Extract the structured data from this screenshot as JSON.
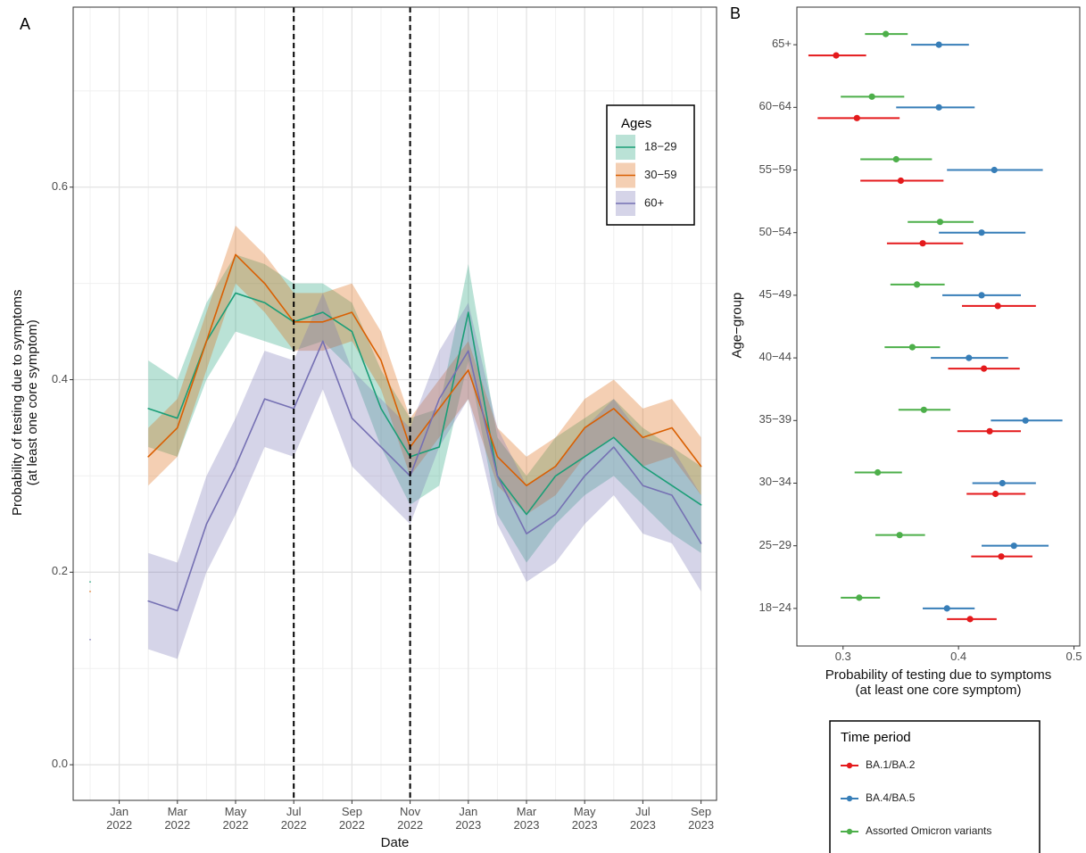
{
  "chart_data": [
    {
      "type": "line",
      "panel_label": "A",
      "x_label": "Date",
      "y_label": "Probability of testing due to symptoms\n(at least one core symptom)",
      "x": [
        "2021-12",
        "2022-01",
        "2022-02",
        "2022-03",
        "2022-04",
        "2022-05",
        "2022-06",
        "2022-07",
        "2022-08",
        "2022-09",
        "2022-10",
        "2022-11",
        "2022-12",
        "2023-01",
        "2023-02",
        "2023-03",
        "2023-04",
        "2023-05",
        "2023-06",
        "2023-07",
        "2023-08",
        "2023-09"
      ],
      "xticks": [
        {
          "value": "2022-01",
          "label": "Jan\n2022"
        },
        {
          "value": "2022-03",
          "label": "Mar\n2022"
        },
        {
          "value": "2022-05",
          "label": "May\n2022"
        },
        {
          "value": "2022-07",
          "label": "Jul\n2022"
        },
        {
          "value": "2022-09",
          "label": "Sep\n2022"
        },
        {
          "value": "2022-11",
          "label": "Nov\n2022"
        },
        {
          "value": "2023-01",
          "label": "Jan\n2023"
        },
        {
          "value": "2023-03",
          "label": "Mar\n2023"
        },
        {
          "value": "2023-05",
          "label": "May\n2023"
        },
        {
          "value": "2023-07",
          "label": "Jul\n2023"
        },
        {
          "value": "2023-09",
          "label": "Sep\n2023"
        }
      ],
      "ylim": [
        -0.037,
        0.787
      ],
      "yticks": [
        {
          "value": 0,
          "label": "0.0"
        },
        0.2,
        0.4,
        0.6
      ],
      "minor_yticks": [
        0.1,
        0.3,
        0.5,
        0.7
      ],
      "grid": true,
      "vlines": [
        "2022-07",
        "2022-11"
      ],
      "legend": {
        "title": "Ages",
        "position": "top-right"
      },
      "series": [
        {
          "name": "18−29",
          "color": "#1b9e77",
          "values": [
            0.19,
            null,
            0.37,
            0.36,
            0.44,
            0.49,
            0.48,
            0.46,
            0.47,
            0.45,
            0.37,
            0.32,
            0.33,
            0.47,
            0.3,
            0.26,
            0.3,
            0.32,
            0.34,
            0.31,
            0.29,
            0.27
          ],
          "lower": [
            0.14,
            null,
            0.33,
            0.32,
            0.4,
            0.45,
            0.44,
            0.43,
            0.44,
            0.41,
            0.33,
            0.27,
            0.29,
            0.42,
            0.26,
            0.21,
            0.25,
            0.28,
            0.3,
            0.27,
            0.24,
            0.22
          ],
          "upper": [
            0.25,
            null,
            0.42,
            0.4,
            0.48,
            0.53,
            0.52,
            0.5,
            0.5,
            0.48,
            0.41,
            0.36,
            0.37,
            0.52,
            0.34,
            0.3,
            0.34,
            0.36,
            0.38,
            0.35,
            0.33,
            0.31
          ]
        },
        {
          "name": "30−59",
          "color": "#d95f02",
          "values": [
            0.18,
            null,
            0.32,
            0.35,
            0.44,
            0.53,
            0.5,
            0.46,
            0.46,
            0.47,
            0.42,
            0.33,
            0.37,
            0.41,
            0.32,
            0.29,
            0.31,
            0.35,
            0.37,
            0.34,
            0.35,
            0.31
          ],
          "lower": [
            0.15,
            null,
            0.29,
            0.32,
            0.41,
            0.5,
            0.47,
            0.43,
            0.43,
            0.44,
            0.39,
            0.3,
            0.34,
            0.38,
            0.29,
            0.26,
            0.28,
            0.32,
            0.34,
            0.31,
            0.32,
            0.28
          ],
          "upper": [
            0.21,
            null,
            0.35,
            0.38,
            0.47,
            0.56,
            0.53,
            0.49,
            0.49,
            0.5,
            0.45,
            0.36,
            0.4,
            0.44,
            0.35,
            0.32,
            0.34,
            0.38,
            0.4,
            0.37,
            0.38,
            0.34
          ]
        },
        {
          "name": "60+",
          "color": "#7570b3",
          "values": [
            0.13,
            null,
            0.17,
            0.16,
            0.25,
            0.31,
            0.38,
            0.37,
            0.44,
            0.36,
            0.33,
            0.3,
            0.38,
            0.43,
            0.3,
            0.24,
            0.26,
            0.3,
            0.33,
            0.29,
            0.28,
            0.23
          ],
          "lower": [
            0.07,
            null,
            0.12,
            0.11,
            0.2,
            0.26,
            0.33,
            0.32,
            0.39,
            0.31,
            0.28,
            0.25,
            0.33,
            0.38,
            0.25,
            0.19,
            0.21,
            0.25,
            0.28,
            0.24,
            0.23,
            0.18
          ],
          "upper": [
            0.19,
            null,
            0.22,
            0.21,
            0.3,
            0.36,
            0.43,
            0.42,
            0.49,
            0.41,
            0.38,
            0.35,
            0.43,
            0.48,
            0.35,
            0.29,
            0.31,
            0.35,
            0.38,
            0.34,
            0.33,
            0.28
          ]
        }
      ]
    },
    {
      "type": "dot_whisker",
      "panel_label": "B",
      "x_label": "Probability of testing due to symptoms\n(at least one core symptom)",
      "y_label": "Age−group",
      "categories": [
        "65+",
        "60−64",
        "55−59",
        "50−54",
        "45−49",
        "40−44",
        "35−39",
        "30−34",
        "25−29",
        "18−24"
      ],
      "xlim": [
        0.26,
        0.505
      ],
      "xticks": [
        0.3,
        0.4,
        0.5
      ],
      "grid": false,
      "legend": {
        "title": "Time period",
        "position": "bottom"
      },
      "series": [
        {
          "name": "BA.1/BA.2",
          "color": "#e41a1c",
          "values": [
            0.294,
            0.312,
            0.35,
            0.369,
            0.434,
            0.422,
            0.427,
            0.432,
            0.437,
            0.41
          ],
          "lower": [
            0.27,
            0.278,
            0.315,
            0.338,
            0.403,
            0.391,
            0.399,
            0.407,
            0.411,
            0.39
          ],
          "upper": [
            0.32,
            0.349,
            0.387,
            0.404,
            0.467,
            0.453,
            0.454,
            0.458,
            0.464,
            0.433
          ]
        },
        {
          "name": "BA.4/BA.5",
          "color": "#377eb8",
          "values": [
            0.383,
            0.383,
            0.431,
            0.42,
            0.42,
            0.409,
            0.458,
            0.438,
            0.448,
            0.39
          ],
          "lower": [
            0.359,
            0.346,
            0.39,
            0.383,
            0.386,
            0.376,
            0.428,
            0.412,
            0.42,
            0.369
          ],
          "upper": [
            0.409,
            0.414,
            0.473,
            0.458,
            0.454,
            0.443,
            0.49,
            0.467,
            0.478,
            0.414
          ]
        },
        {
          "name": "Assorted Omicron variants",
          "color": "#4daf4a",
          "values": [
            0.337,
            0.325,
            0.346,
            0.384,
            0.364,
            0.36,
            0.37,
            0.33,
            0.349,
            0.314
          ],
          "lower": [
            0.319,
            0.298,
            0.315,
            0.356,
            0.341,
            0.336,
            0.348,
            0.31,
            0.328,
            0.298
          ],
          "upper": [
            0.356,
            0.353,
            0.377,
            0.413,
            0.388,
            0.384,
            0.393,
            0.351,
            0.371,
            0.332
          ]
        }
      ]
    }
  ]
}
